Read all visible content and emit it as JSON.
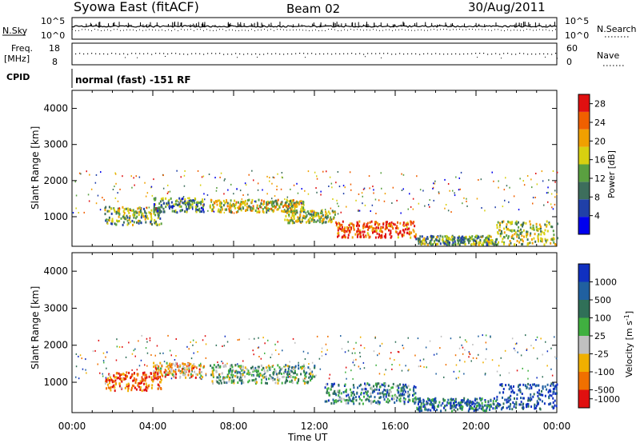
{
  "header": {
    "title": "Syowa East (fitACF)",
    "beam": "Beam 02",
    "date": "30/Aug/2011"
  },
  "panels": {
    "nsky": {
      "left_label": "N.Sky",
      "right_label": "N.Search",
      "left_ticks": [
        "10^5",
        "10^0"
      ],
      "right_ticks": [
        "10^5",
        "10^0"
      ]
    },
    "freq": {
      "left_label_1": "Freq.",
      "left_label_2": "[MHz]",
      "right_label": "Nave",
      "left_ticks": [
        "18",
        "8"
      ],
      "right_ticks": [
        "60",
        "0"
      ]
    },
    "cpid": {
      "label": "CPID",
      "text": "normal (fast) -151 RF"
    }
  },
  "chart_data": [
    {
      "type": "heatmap",
      "name": "power",
      "ylabel": "Slant Range [km]",
      "xlabel": "",
      "yticks": [
        "1000",
        "2000",
        "3000",
        "4000"
      ],
      "ylim": [
        180,
        4500
      ],
      "xlim_hours": [
        0,
        24
      ],
      "colorbar": {
        "label": "Power [dB]",
        "ticks": [
          "4",
          "8",
          "12",
          "16",
          "20",
          "24",
          "28"
        ],
        "range": [
          0,
          30
        ],
        "colors": [
          "#0000ee",
          "#2040a8",
          "#3d6e5c",
          "#5aa040",
          "#d8d010",
          "#f0a000",
          "#f06000",
          "#e01010"
        ]
      },
      "echo_bands": [
        {
          "t0": 1.6,
          "t1": 4.4,
          "r0": 800,
          "r1": 1300,
          "level": 0.45
        },
        {
          "t0": 4.0,
          "t1": 6.5,
          "r0": 1150,
          "r1": 1550,
          "level": 0.35
        },
        {
          "t0": 6.8,
          "t1": 11.5,
          "r0": 1150,
          "r1": 1500,
          "level": 0.55
        },
        {
          "t0": 10.5,
          "t1": 13.0,
          "r0": 850,
          "r1": 1200,
          "level": 0.5
        },
        {
          "t0": 13.0,
          "t1": 17.0,
          "r0": 450,
          "r1": 900,
          "level": 0.85
        },
        {
          "t0": 17.0,
          "t1": 21.0,
          "r0": 250,
          "r1": 500,
          "level": 0.4
        },
        {
          "t0": 21.0,
          "t1": 24.0,
          "r0": 250,
          "r1": 900,
          "level": 0.5
        }
      ]
    },
    {
      "type": "heatmap",
      "name": "velocity",
      "ylabel": "Slant Range [km]",
      "xlabel": "Time UT",
      "xticks": [
        "00:00",
        "04:00",
        "08:00",
        "12:00",
        "16:00",
        "20:00",
        "00:00"
      ],
      "yticks": [
        "1000",
        "2000",
        "3000",
        "4000"
      ],
      "ylim": [
        180,
        4500
      ],
      "xlim_hours": [
        0,
        24
      ],
      "colorbar": {
        "label": "Velocity [m s^-1]",
        "ticks": [
          "1000",
          "500",
          "100",
          "25",
          "-25",
          "-100",
          "-500",
          "-1000"
        ],
        "colors": [
          "#1030c0",
          "#2060a0",
          "#307058",
          "#40b040",
          "#c0c0c0",
          "#f0b000",
          "#f07000",
          "#e01010"
        ]
      },
      "echo_bands": [
        {
          "t0": 1.6,
          "t1": 4.4,
          "r0": 800,
          "r1": 1300,
          "level": 0.85
        },
        {
          "t0": 4.0,
          "t1": 6.5,
          "r0": 1150,
          "r1": 1550,
          "level": 0.7
        },
        {
          "t0": 6.8,
          "t1": 12.0,
          "r0": 1000,
          "r1": 1500,
          "level": 0.45
        },
        {
          "t0": 12.5,
          "t1": 17.0,
          "r0": 450,
          "r1": 1000,
          "level": 0.3
        },
        {
          "t0": 17.0,
          "t1": 21.0,
          "r0": 250,
          "r1": 600,
          "level": 0.25
        },
        {
          "t0": 21.0,
          "t1": 24.0,
          "r0": 300,
          "r1": 1000,
          "level": 0.1
        }
      ]
    }
  ]
}
